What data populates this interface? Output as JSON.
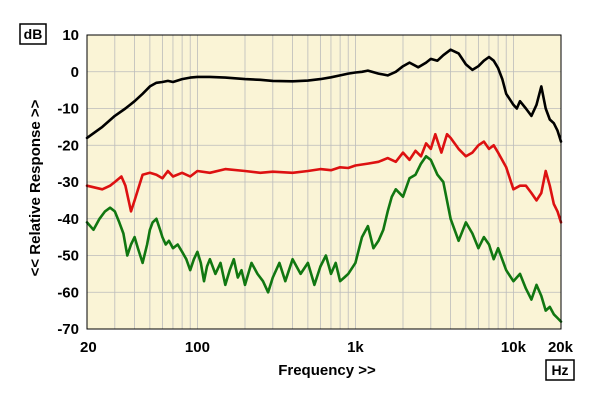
{
  "chart_data": {
    "type": "line",
    "xscale": "log",
    "xlim": [
      20,
      20000
    ],
    "ylim": [
      -70,
      10
    ],
    "grid": true,
    "xlabel": "Frequency >>",
    "ylabel": "<< Relative Response >>",
    "y_unit": "dB",
    "x_unit": "Hz",
    "x_tick_values": [
      20,
      100,
      1000,
      10000,
      20000
    ],
    "x_tick_labels": [
      "20",
      "100",
      "1k",
      "10k",
      "20k"
    ],
    "y_tick_values": [
      10,
      0,
      -10,
      -20,
      -30,
      -40,
      -50,
      -60,
      -70
    ],
    "y_tick_labels": [
      "10",
      "0",
      "-10",
      "-20",
      "-30",
      "-40",
      "-50",
      "-60",
      "-70"
    ],
    "colors": {
      "plot_bg": "#FAF4D6",
      "grid": "#BBBBBB",
      "series_black": "#000000",
      "series_red": "#DD1111",
      "series_green": "#117711"
    },
    "series": [
      {
        "color": "#000000",
        "x": [
          20,
          25,
          30,
          35,
          40,
          45,
          50,
          55,
          60,
          65,
          70,
          80,
          90,
          100,
          120,
          150,
          200,
          250,
          300,
          400,
          500,
          600,
          700,
          800,
          900,
          1000,
          1100,
          1200,
          1400,
          1600,
          1800,
          2000,
          2200,
          2500,
          2800,
          3000,
          3300,
          3600,
          4000,
          4500,
          5000,
          5500,
          6000,
          6500,
          7000,
          7500,
          8000,
          8500,
          9000,
          10000,
          10500,
          11000,
          12000,
          13000,
          14000,
          15000,
          16000,
          17000,
          18000,
          19000,
          20000
        ],
        "y": [
          -18,
          -15,
          -12,
          -10,
          -8,
          -6,
          -4,
          -3,
          -2.8,
          -2.5,
          -2.8,
          -2,
          -1.6,
          -1.4,
          -1.4,
          -1.6,
          -2,
          -2.2,
          -2.5,
          -2.6,
          -2.4,
          -2,
          -1.5,
          -1,
          -0.5,
          -0.2,
          0,
          0.3,
          -0.5,
          -1,
          0,
          1.5,
          2.5,
          1.2,
          2.5,
          3.5,
          3,
          4.5,
          6,
          5,
          2,
          0.5,
          1.5,
          3,
          4,
          3,
          1,
          -2,
          -6,
          -9,
          -10,
          -8,
          -10,
          -12,
          -9,
          -4,
          -10,
          -13,
          -14,
          -16,
          -19
        ]
      },
      {
        "color": "#DD1111",
        "x": [
          20,
          25,
          28,
          30,
          33,
          35,
          38,
          40,
          45,
          50,
          55,
          60,
          65,
          70,
          80,
          90,
          100,
          120,
          150,
          200,
          250,
          300,
          400,
          500,
          600,
          700,
          800,
          900,
          1000,
          1200,
          1400,
          1600,
          1800,
          2000,
          2200,
          2400,
          2600,
          2800,
          3000,
          3200,
          3500,
          3800,
          4000,
          4500,
          5000,
          5500,
          6000,
          6500,
          7000,
          7500,
          8000,
          9000,
          10000,
          11000,
          12000,
          13000,
          14000,
          15000,
          16000,
          17000,
          18000,
          19000,
          20000
        ],
        "y": [
          -31,
          -32,
          -31,
          -30,
          -28.5,
          -31,
          -38,
          -35,
          -28,
          -27.5,
          -28,
          -29,
          -27,
          -28.5,
          -27.5,
          -28.5,
          -27,
          -27.5,
          -26.5,
          -27,
          -27.5,
          -27.2,
          -27.5,
          -27,
          -26.5,
          -26.8,
          -26,
          -26.2,
          -25.5,
          -25,
          -24.5,
          -23.5,
          -24.5,
          -22,
          -24,
          -21.5,
          -23,
          -19.5,
          -21,
          -17,
          -22,
          -17,
          -18,
          -21,
          -23,
          -22,
          -20,
          -19,
          -21,
          -20,
          -22,
          -26,
          -32,
          -31,
          -31,
          -33,
          -35,
          -33,
          -27,
          -31,
          -36,
          -38,
          -41
        ]
      },
      {
        "color": "#117711",
        "x": [
          20,
          22,
          24,
          26,
          28,
          30,
          32,
          34,
          36,
          38,
          40,
          42,
          45,
          48,
          50,
          52,
          55,
          58,
          60,
          63,
          66,
          70,
          75,
          80,
          85,
          90,
          95,
          100,
          105,
          110,
          115,
          120,
          130,
          140,
          150,
          160,
          170,
          180,
          190,
          200,
          220,
          240,
          260,
          280,
          300,
          330,
          360,
          400,
          450,
          500,
          550,
          600,
          650,
          700,
          750,
          800,
          850,
          900,
          1000,
          1100,
          1200,
          1300,
          1400,
          1500,
          1600,
          1700,
          1800,
          2000,
          2200,
          2400,
          2600,
          2800,
          3000,
          3300,
          3600,
          4000,
          4500,
          5000,
          5500,
          6000,
          6500,
          7000,
          7500,
          8000,
          9000,
          10000,
          11000,
          12000,
          13000,
          14000,
          15000,
          16000,
          17000,
          18000,
          19000,
          20000
        ],
        "y": [
          -41,
          -43,
          -40,
          -38,
          -37,
          -38,
          -41,
          -44,
          -50,
          -47,
          -45,
          -48,
          -52,
          -47,
          -43,
          -41,
          -40,
          -43,
          -45,
          -47,
          -46,
          -48,
          -47,
          -49,
          -51,
          -54,
          -51,
          -49,
          -52,
          -57,
          -53,
          -51,
          -55,
          -52,
          -58,
          -54,
          -51,
          -56,
          -54,
          -58,
          -52,
          -55,
          -57,
          -60,
          -56,
          -52,
          -57,
          -51,
          -55,
          -52,
          -58,
          -53,
          -50,
          -55,
          -52,
          -57,
          -56,
          -55,
          -52,
          -45,
          -42,
          -48,
          -46,
          -43,
          -38,
          -34,
          -32,
          -34,
          -29,
          -28,
          -25,
          -23,
          -24,
          -28,
          -30,
          -40,
          -46,
          -41,
          -44,
          -48,
          -45,
          -47,
          -51,
          -48,
          -54,
          -57,
          -55,
          -59,
          -62,
          -58,
          -61,
          -65,
          -64,
          -66,
          -67,
          -68
        ]
      }
    ]
  }
}
